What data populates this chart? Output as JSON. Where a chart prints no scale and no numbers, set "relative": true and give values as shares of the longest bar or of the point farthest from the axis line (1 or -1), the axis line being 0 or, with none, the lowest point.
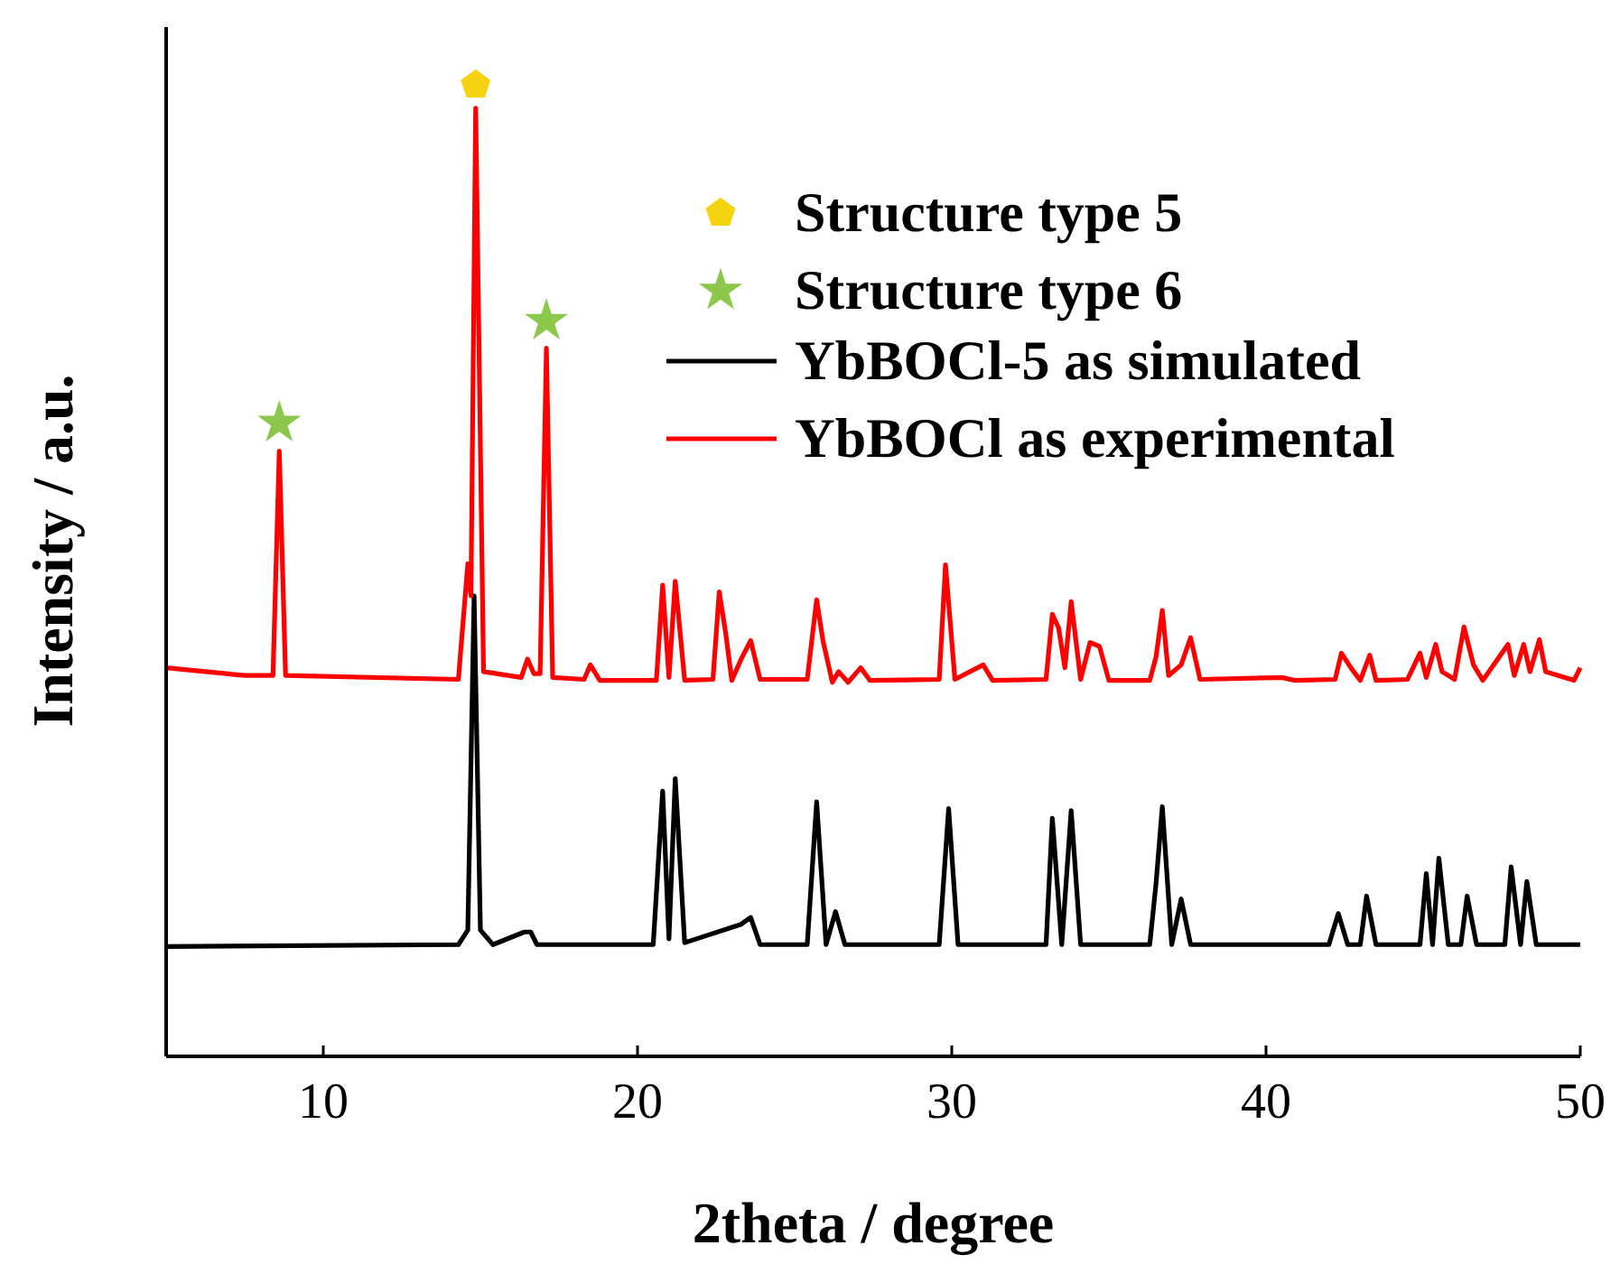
{
  "chart_data": {
    "type": "line",
    "relative": true,
    "xlabel": "2theta / degree",
    "ylabel": "Intensity / a.u.",
    "xlim": [
      5,
      50
    ],
    "xticks": [
      10,
      20,
      30,
      40,
      50
    ],
    "legend": "top right",
    "grid": false,
    "series": [
      {
        "name": "Structure type 5",
        "type": "scatter",
        "color": "#f5d311",
        "x": [
          14.85
        ],
        "values": [
          1.0
        ]
      },
      {
        "name": "Structure type 6",
        "type": "scatter",
        "marker": "star",
        "color": "#8cc84b",
        "x": [
          8.6,
          17.1
        ],
        "values": [
          0.652,
          0.757
        ]
      },
      {
        "name": "YbBOCl-5 as simulated",
        "color": "#000000",
        "x": [
          5,
          14.3,
          14.6,
          14.8,
          15.0,
          15.4,
          16.4,
          16.6,
          16.8,
          20.5,
          20.8,
          21.0,
          21.2,
          21.5,
          23.3,
          23.6,
          23.9,
          25.4,
          25.7,
          26.0,
          26.3,
          26.6,
          29.6,
          29.9,
          30.2,
          33.0,
          33.2,
          33.5,
          33.8,
          34.1,
          36.3,
          36.5,
          36.7,
          37.0,
          37.3,
          37.6,
          42.0,
          42.3,
          42.6,
          43.0,
          43.2,
          43.5,
          44.9,
          45.1,
          45.3,
          45.5,
          45.8,
          46.2,
          46.4,
          46.7,
          47.6,
          47.8,
          48.1,
          48.3,
          48.6,
          50
        ],
        "values": [
          0.113,
          0.115,
          0.13,
          0.474,
          0.13,
          0.115,
          0.128,
          0.128,
          0.115,
          0.115,
          0.273,
          0.121,
          0.286,
          0.117,
          0.136,
          0.143,
          0.115,
          0.115,
          0.262,
          0.115,
          0.149,
          0.115,
          0.115,
          0.255,
          0.115,
          0.115,
          0.245,
          0.115,
          0.253,
          0.115,
          0.115,
          0.178,
          0.257,
          0.115,
          0.162,
          0.115,
          0.115,
          0.147,
          0.115,
          0.115,
          0.165,
          0.115,
          0.115,
          0.188,
          0.115,
          0.204,
          0.115,
          0.115,
          0.165,
          0.115,
          0.115,
          0.195,
          0.115,
          0.18,
          0.115,
          0.115
        ]
      },
      {
        "name": "YbBOCl as experimental",
        "color": "#ff0000",
        "x": [
          5,
          7.5,
          8.4,
          8.6,
          8.8,
          14.3,
          14.6,
          14.7,
          14.85,
          15.1,
          16.3,
          16.5,
          16.7,
          16.9,
          17.1,
          17.3,
          18.3,
          18.5,
          18.8,
          20.6,
          20.8,
          21.0,
          21.2,
          21.5,
          22.4,
          22.6,
          22.8,
          23.0,
          23.3,
          23.6,
          23.9,
          25.4,
          25.7,
          25.9,
          26.2,
          26.4,
          26.7,
          27.1,
          27.4,
          29.6,
          29.8,
          30.1,
          31.0,
          31.3,
          33.0,
          33.2,
          33.4,
          33.6,
          33.8,
          34.1,
          34.4,
          34.7,
          35.0,
          36.3,
          36.5,
          36.7,
          36.9,
          37.3,
          37.6,
          37.9,
          40.5,
          40.9,
          42.2,
          42.4,
          42.7,
          43.0,
          43.3,
          43.5,
          44.5,
          44.9,
          45.1,
          45.4,
          45.6,
          46.0,
          46.3,
          46.6,
          46.9,
          47.7,
          47.9,
          48.2,
          48.4,
          48.7,
          48.9,
          49.8,
          50
        ],
        "values": [
          0.4,
          0.392,
          0.392,
          0.623,
          0.392,
          0.388,
          0.507,
          0.474,
          0.976,
          0.396,
          0.39,
          0.409,
          0.394,
          0.394,
          0.729,
          0.39,
          0.388,
          0.403,
          0.387,
          0.387,
          0.485,
          0.39,
          0.489,
          0.387,
          0.388,
          0.478,
          0.437,
          0.387,
          0.409,
          0.428,
          0.388,
          0.388,
          0.47,
          0.428,
          0.385,
          0.396,
          0.385,
          0.4,
          0.387,
          0.388,
          0.506,
          0.388,
          0.403,
          0.387,
          0.388,
          0.455,
          0.441,
          0.4,
          0.468,
          0.388,
          0.426,
          0.422,
          0.387,
          0.387,
          0.411,
          0.459,
          0.392,
          0.403,
          0.431,
          0.388,
          0.39,
          0.387,
          0.388,
          0.415,
          0.4,
          0.387,
          0.413,
          0.387,
          0.388,
          0.415,
          0.39,
          0.424,
          0.396,
          0.388,
          0.442,
          0.403,
          0.387,
          0.424,
          0.392,
          0.424,
          0.396,
          0.429,
          0.396,
          0.387,
          0.4
        ]
      }
    ]
  }
}
